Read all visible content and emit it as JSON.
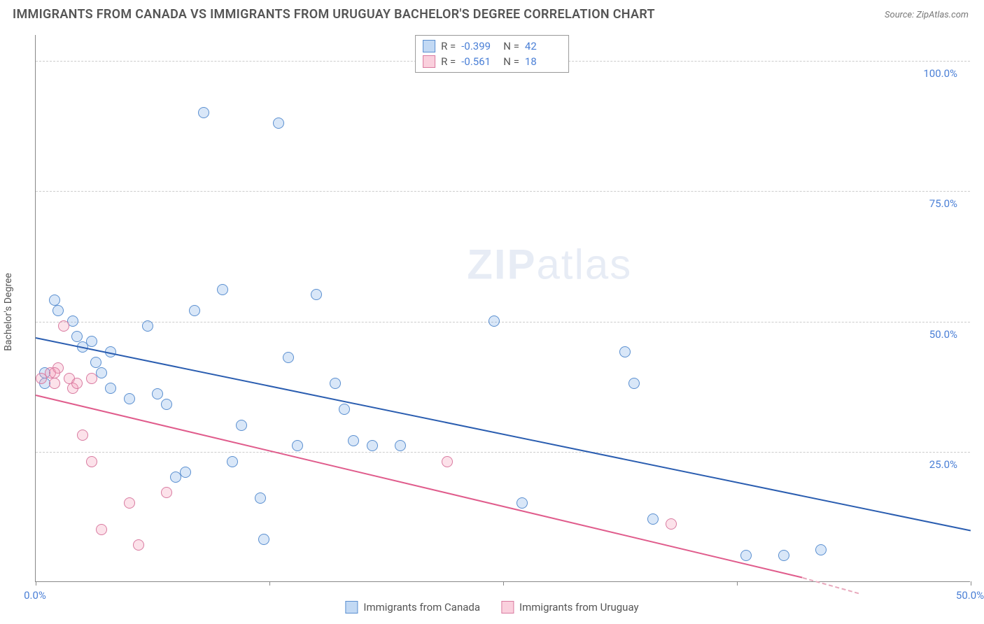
{
  "title": "IMMIGRANTS FROM CANADA VS IMMIGRANTS FROM URUGUAY BACHELOR'S DEGREE CORRELATION CHART",
  "source_label": "Source: ZipAtlas.com",
  "watermark": {
    "zip": "ZIP",
    "atlas": "atlas"
  },
  "y_axis_label": "Bachelor's Degree",
  "chart": {
    "type": "scatter",
    "xlim": [
      0,
      50
    ],
    "ylim": [
      0,
      105
    ],
    "x_ticks": [
      0,
      12.5,
      25,
      37.5,
      50
    ],
    "x_tick_labels": [
      "0.0%",
      "",
      "",
      "",
      "50.0%"
    ],
    "y_ticks": [
      25,
      50,
      75,
      100
    ],
    "y_tick_labels": [
      "25.0%",
      "50.0%",
      "75.0%",
      "100.0%"
    ],
    "grid_color": "#cccccc",
    "axis_color": "#888888",
    "background_color": "#ffffff",
    "marker_radius": 8,
    "marker_border_width": 1.2,
    "series": [
      {
        "name": "Immigrants from Canada",
        "fill": "rgba(120,170,230,0.28)",
        "stroke": "#5a8fd0",
        "R": "-0.399",
        "N": "42",
        "trend": {
          "x1": 0,
          "y1": 47,
          "x2": 50,
          "y2": 10,
          "color": "#2a5db0",
          "dashed": false
        },
        "points": [
          [
            0.5,
            40
          ],
          [
            0.5,
            38
          ],
          [
            1.0,
            54
          ],
          [
            1.2,
            52
          ],
          [
            2.0,
            50
          ],
          [
            2.2,
            47
          ],
          [
            2.5,
            45
          ],
          [
            3.0,
            46
          ],
          [
            3.2,
            42
          ],
          [
            3.5,
            40
          ],
          [
            4.0,
            44
          ],
          [
            4.0,
            37
          ],
          [
            5.0,
            35
          ],
          [
            6.0,
            49
          ],
          [
            6.5,
            36
          ],
          [
            7.0,
            34
          ],
          [
            7.5,
            20
          ],
          [
            8.0,
            21
          ],
          [
            8.5,
            52
          ],
          [
            9.0,
            90
          ],
          [
            10.0,
            56
          ],
          [
            10.5,
            23
          ],
          [
            11.0,
            30
          ],
          [
            12.0,
            16
          ],
          [
            12.2,
            8
          ],
          [
            13.0,
            88
          ],
          [
            13.5,
            43
          ],
          [
            14.0,
            26
          ],
          [
            15.0,
            55
          ],
          [
            16.0,
            38
          ],
          [
            16.5,
            33
          ],
          [
            17.0,
            27
          ],
          [
            18.0,
            26
          ],
          [
            19.5,
            26
          ],
          [
            24.5,
            50
          ],
          [
            26.0,
            15
          ],
          [
            31.5,
            44
          ],
          [
            32.0,
            38
          ],
          [
            33.0,
            12
          ],
          [
            38.0,
            5
          ],
          [
            40.0,
            5
          ],
          [
            42.0,
            6
          ]
        ]
      },
      {
        "name": "Immigrants from Uruguay",
        "fill": "rgba(245,150,180,0.28)",
        "stroke": "#d97aa0",
        "R": "-0.561",
        "N": "18",
        "trend": {
          "x1": 0,
          "y1": 36,
          "x2": 41,
          "y2": 1,
          "color": "#e05c8c",
          "dashed": false
        },
        "trend_ext": {
          "x1": 41,
          "y1": 1,
          "x2": 44,
          "y2": -2,
          "color": "#e8a8bc",
          "dashed": true
        },
        "points": [
          [
            0.3,
            39
          ],
          [
            0.8,
            40
          ],
          [
            1.0,
            38
          ],
          [
            1.2,
            41
          ],
          [
            1.5,
            49
          ],
          [
            1.8,
            39
          ],
          [
            2.0,
            37
          ],
          [
            2.2,
            38
          ],
          [
            2.5,
            28
          ],
          [
            3.0,
            39
          ],
          [
            3.0,
            23
          ],
          [
            3.5,
            10
          ],
          [
            5.0,
            15
          ],
          [
            5.5,
            7
          ],
          [
            7.0,
            17
          ],
          [
            22.0,
            23
          ],
          [
            34.0,
            11
          ],
          [
            1.0,
            40
          ]
        ]
      }
    ]
  },
  "stats_legend": {
    "rows": [
      {
        "swatch_fill": "rgba(120,170,230,0.45)",
        "swatch_stroke": "#5a8fd0",
        "R": "-0.399",
        "N": "42"
      },
      {
        "swatch_fill": "rgba(245,150,180,0.45)",
        "swatch_stroke": "#d97aa0",
        "R": "-0.561",
        "N": "18"
      }
    ],
    "r_label": "R =",
    "n_label": "N ="
  },
  "bottom_legend": [
    {
      "label": "Immigrants from Canada",
      "swatch_fill": "rgba(120,170,230,0.45)",
      "swatch_stroke": "#5a8fd0"
    },
    {
      "label": "Immigrants from Uruguay",
      "swatch_fill": "rgba(245,150,180,0.45)",
      "swatch_stroke": "#d97aa0"
    }
  ]
}
